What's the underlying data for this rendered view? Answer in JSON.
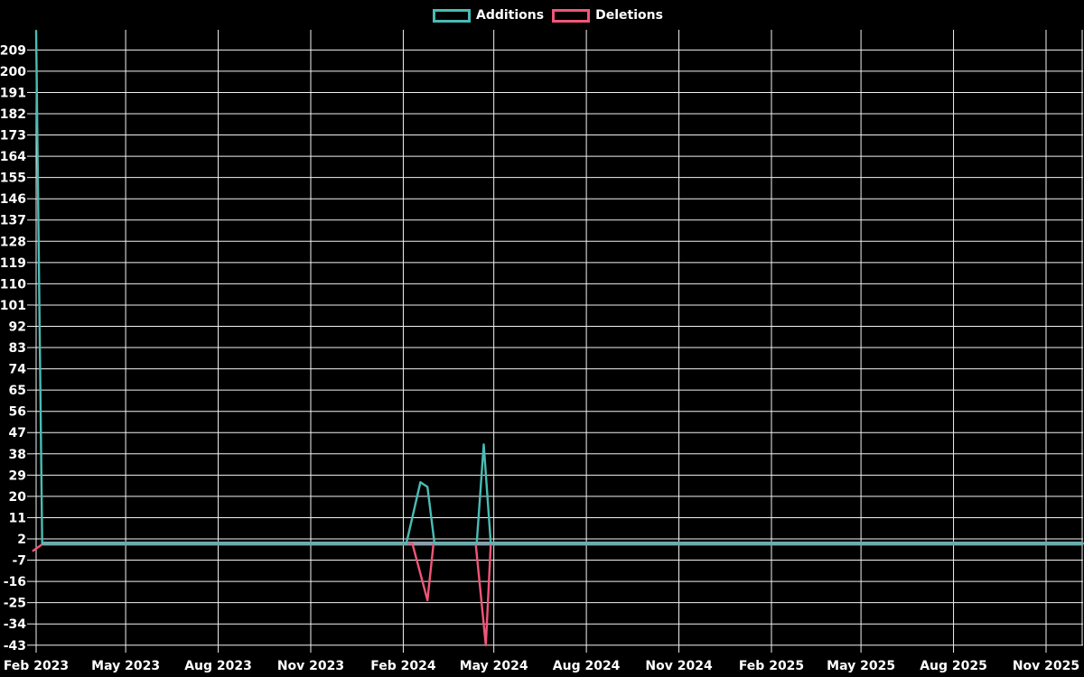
{
  "legend": {
    "items": [
      {
        "label": "Additions",
        "color": "#49bcb4"
      },
      {
        "label": "Deletions",
        "color": "#f05679"
      }
    ]
  },
  "colors": {
    "background": "#000000",
    "grid": "#f2f2f2",
    "text": "#ffffff",
    "additions": "#49bcb4",
    "deletions": "#f05679",
    "zero_baseline": "#87a0ac"
  },
  "chart_data": {
    "type": "line",
    "title": "",
    "xlabel": "",
    "ylabel": "",
    "grid": true,
    "legend_position": "top-center",
    "ylim": [
      -43,
      217
    ],
    "y_tick_step": 9,
    "y_ticks": [
      209,
      200,
      191,
      182,
      173,
      164,
      155,
      146,
      137,
      128,
      119,
      110,
      101,
      92,
      83,
      74,
      65,
      56,
      47,
      38,
      29,
      20,
      11,
      2,
      -7,
      -16,
      -25,
      -34,
      -43
    ],
    "x_ticks": [
      {
        "label": "Feb 2023",
        "date": "2023-02-01"
      },
      {
        "label": "May 2023",
        "date": "2023-05-01"
      },
      {
        "label": "Aug 2023",
        "date": "2023-08-01"
      },
      {
        "label": "Nov 2023",
        "date": "2023-11-01"
      },
      {
        "label": "Feb 2024",
        "date": "2024-02-01"
      },
      {
        "label": "May 2024",
        "date": "2024-05-01"
      },
      {
        "label": "Aug 2024",
        "date": "2024-08-01"
      },
      {
        "label": "Nov 2024",
        "date": "2024-11-01"
      },
      {
        "label": "Feb 2025",
        "date": "2025-02-01"
      },
      {
        "label": "May 2025",
        "date": "2025-05-01"
      },
      {
        "label": "Aug 2025",
        "date": "2025-08-01"
      },
      {
        "label": "Nov 2025",
        "date": "2025-11-01"
      }
    ],
    "x_range": [
      "2023-01-29",
      "2025-12-08"
    ],
    "series": [
      {
        "name": "Additions",
        "color": "#49bcb4",
        "points": [
          [
            "2023-02-01",
            217
          ],
          [
            "2023-02-07",
            0
          ],
          [
            "2024-02-04",
            0
          ],
          [
            "2024-02-18",
            26
          ],
          [
            "2024-02-25",
            24
          ],
          [
            "2024-03-03",
            0
          ],
          [
            "2024-04-14",
            0
          ],
          [
            "2024-04-21",
            42
          ],
          [
            "2024-04-28",
            0
          ],
          [
            "2025-12-08",
            0
          ]
        ]
      },
      {
        "name": "Deletions",
        "color": "#f05679",
        "points": [
          [
            "2023-01-29",
            -3
          ],
          [
            "2023-02-08",
            0
          ],
          [
            "2024-02-10",
            0
          ],
          [
            "2024-02-25",
            -24
          ],
          [
            "2024-03-02",
            0
          ],
          [
            "2024-04-13",
            0
          ],
          [
            "2024-04-23",
            -43
          ],
          [
            "2024-04-28",
            0
          ],
          [
            "2025-12-08",
            0
          ]
        ]
      }
    ]
  }
}
